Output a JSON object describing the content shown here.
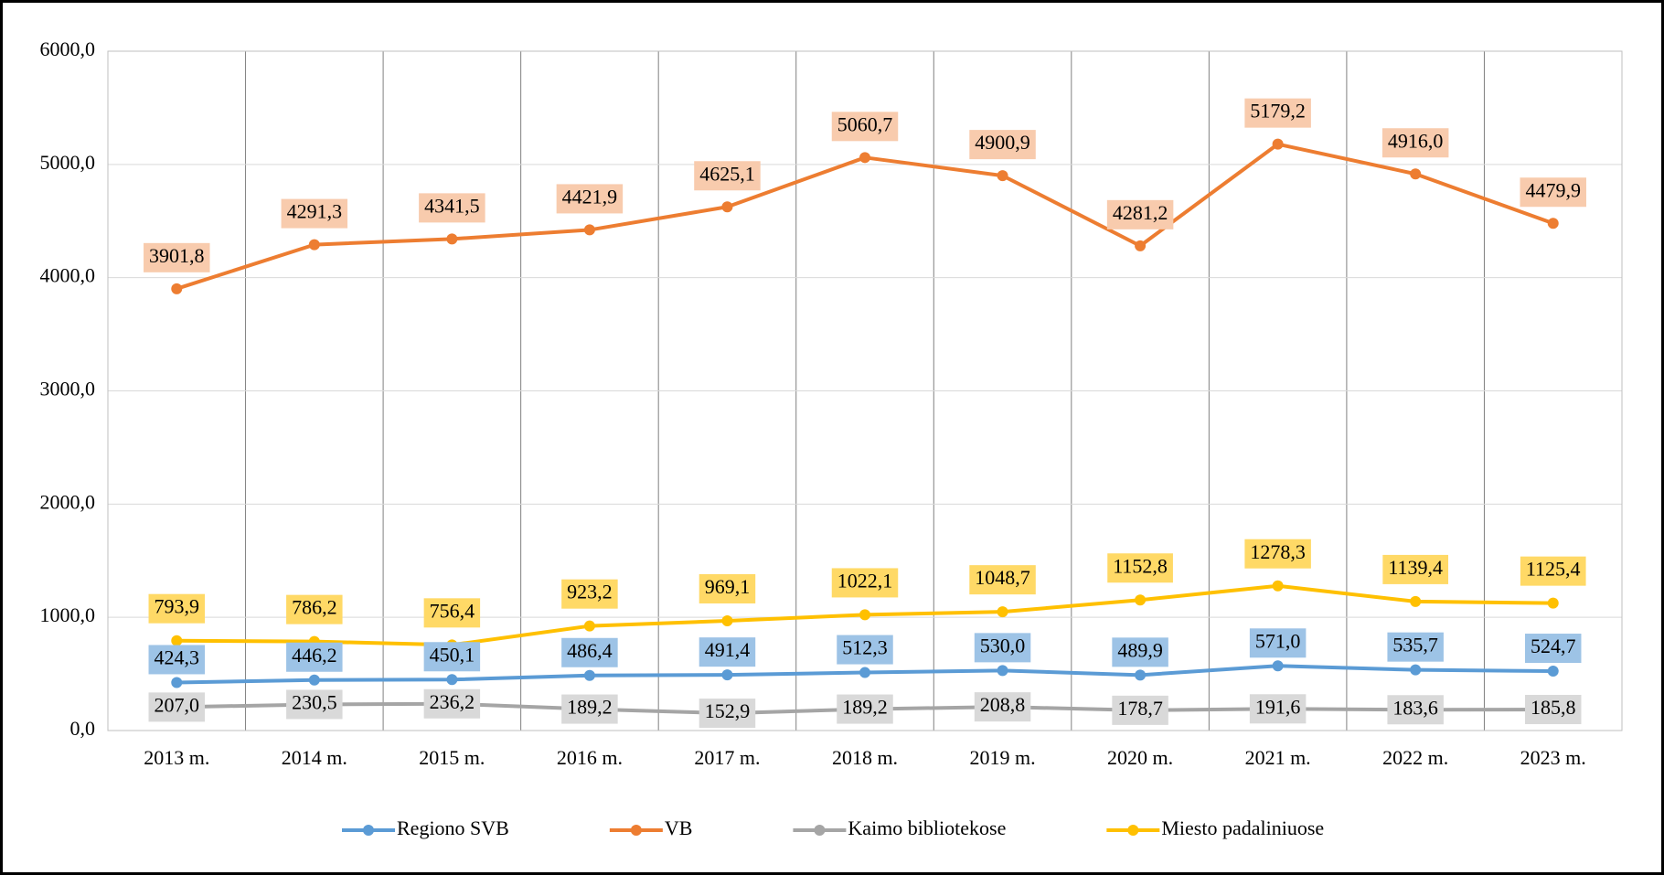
{
  "chart_data": {
    "type": "line",
    "categories": [
      "2013 m.",
      "2014 m.",
      "2015 m.",
      "2016 m.",
      "2017 m.",
      "2018 m.",
      "2019 m.",
      "2020 m.",
      "2021 m.",
      "2022 m.",
      "2023 m."
    ],
    "series": [
      {
        "name": "Regiono SVB",
        "color": "#5b9bd5",
        "label_color": "#9dc3e6",
        "values": [
          424.3,
          446.2,
          450.1,
          486.4,
          491.4,
          512.3,
          530.0,
          489.9,
          571.0,
          535.7,
          524.7
        ],
        "value_labels": [
          "424,3",
          "446,2",
          "450,1",
          "486,4",
          "491,4",
          "512,3",
          "530,0",
          "489,9",
          "571,0",
          "535,7",
          "524,7"
        ]
      },
      {
        "name": "VB",
        "color": "#ed7d31",
        "label_color": "#f8cbad",
        "values": [
          3901.8,
          4291.3,
          4341.5,
          4421.9,
          4625.1,
          5060.7,
          4900.9,
          4281.2,
          5179.2,
          4916.0,
          4479.9
        ],
        "value_labels": [
          "3901,8",
          "4291,3",
          "4341,5",
          "4421,9",
          "4625,1",
          "5060,7",
          "4900,9",
          "4281,2",
          "5179,2",
          "4916,0",
          "4479,9"
        ]
      },
      {
        "name": "Kaimo bibliotekose",
        "color": "#a5a5a5",
        "label_color": "#d9d9d9",
        "values": [
          207.0,
          230.5,
          236.2,
          189.2,
          152.9,
          189.2,
          208.8,
          178.7,
          191.6,
          183.6,
          185.8
        ],
        "value_labels": [
          "207,0",
          "230,5",
          "236,2",
          "189,2",
          "152,9",
          "189,2",
          "208,8",
          "178,7",
          "191,6",
          "183,6",
          "185,8"
        ]
      },
      {
        "name": "Miesto padaliniuose",
        "color": "#ffc000",
        "label_color": "#ffd966",
        "values": [
          793.9,
          786.2,
          756.4,
          923.2,
          969.1,
          1022.1,
          1048.7,
          1152.8,
          1278.3,
          1139.4,
          1125.4
        ],
        "value_labels": [
          "793,9",
          "786,2",
          "756,4",
          "923,2",
          "969,1",
          "1022,1",
          "1048,7",
          "1152,8",
          "1278,3",
          "1139,4",
          "1125,4"
        ]
      }
    ],
    "ylim": [
      0,
      6000
    ],
    "yticks": [
      {
        "value": 0,
        "label": "0,0"
      },
      {
        "value": 1000,
        "label": "1000,0"
      },
      {
        "value": 2000,
        "label": "2000,0"
      },
      {
        "value": 3000,
        "label": "3000,0"
      },
      {
        "value": 4000,
        "label": "4000,0"
      },
      {
        "value": 5000,
        "label": "5000,0"
      },
      {
        "value": 6000,
        "label": "6000,0"
      }
    ],
    "grid": true,
    "legend": "bottom"
  }
}
